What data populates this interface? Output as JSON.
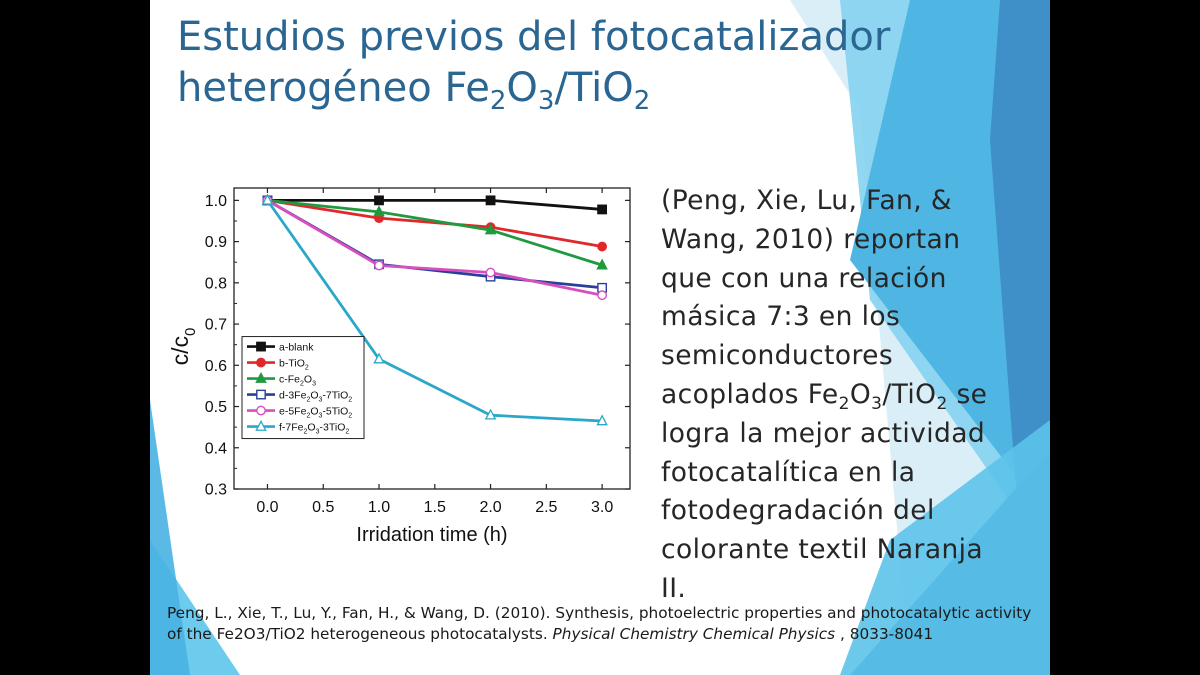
{
  "title": {
    "line1": "Estudios previos del fotocatalizador",
    "line2_pre": "heterogéneo Fe",
    "line2_sub1": "2",
    "line2_mid": "O",
    "line2_sub2": "3",
    "line2_mid2": "/TiO",
    "line2_sub3": "2"
  },
  "body": {
    "l1": "(Peng, Xie, Lu, Fan, &",
    "l2": "Wang, 2010) reportan",
    "l3": "que con una relación",
    "l4": "másica 7:3 en los",
    "l5": "semiconductores",
    "l6_pre": "acoplados Fe",
    "l6_s1": "2",
    "l6_m1": "O",
    "l6_s2": "3",
    "l6_m2": "/TiO",
    "l6_s3": "2",
    "l6_post": " se",
    "l7": "logra la mejor actividad",
    "l8": "fotocatalítica en la",
    "l9": "fotodegradación del",
    "l10": "colorante textil Naranja",
    "l11": "II."
  },
  "citation": {
    "part1": "Peng, L., Xie, T., Lu, Y., Fan, H., & Wang, D. (2010). Synthesis, photoelectric properties and photocatalytic activity of the Fe2O3/TiO2 heterogeneous photocatalysts. ",
    "journal": "Physical Chemistry Chemical Physics",
    "part2": " , 8033-8041"
  },
  "colors": {
    "title": "#2a6691",
    "deco_light": "#5bc4e8",
    "deco_mid": "#3a9fd4",
    "deco_dark": "#2a73a8"
  },
  "chart_data": {
    "type": "line",
    "xlabel": "Irridation time (h)",
    "ylabel_main": "c/c",
    "ylabel_sub": "0",
    "x": [
      0,
      1,
      2,
      3
    ],
    "xlim": [
      -0.3,
      3.25
    ],
    "ylim": [
      0.3,
      1.03
    ],
    "xticks": [
      "0.0",
      "0.5",
      "1.0",
      "1.5",
      "2.0",
      "2.5",
      "3.0"
    ],
    "yticks": [
      "0.3",
      "0.4",
      "0.5",
      "0.6",
      "0.7",
      "0.8",
      "0.9",
      "1.0"
    ],
    "legend_position": "bottom-left",
    "series": [
      {
        "name": "a-blank",
        "prefix": "a-blank",
        "sub1": "",
        "mid": "",
        "sub2": "",
        "tail": "",
        "sub3": "",
        "color": "#111111",
        "marker": "square-filled",
        "values": [
          1.0,
          1.0,
          1.0,
          0.978
        ]
      },
      {
        "name": "b-TiO2",
        "prefix": "b-TiO",
        "sub1": "2",
        "mid": "",
        "sub2": "",
        "tail": "",
        "sub3": "",
        "color": "#e0282b",
        "marker": "circle-filled",
        "values": [
          1.0,
          0.957,
          0.935,
          0.888
        ]
      },
      {
        "name": "c-Fe2O3",
        "prefix": "c-Fe",
        "sub1": "2",
        "mid": "O",
        "sub2": "3",
        "tail": "",
        "sub3": "",
        "color": "#1f9a3e",
        "marker": "triangle-filled",
        "values": [
          1.0,
          0.972,
          0.928,
          0.843
        ]
      },
      {
        "name": "d-3Fe2O3-7TiO2",
        "prefix": "d-3Fe",
        "sub1": "2",
        "mid": "O",
        "sub2": "3",
        "tail": "-7TiO",
        "sub3": "2",
        "color": "#2a3f9a",
        "marker": "square-open",
        "values": [
          1.0,
          0.845,
          0.815,
          0.788
        ]
      },
      {
        "name": "e-5Fe2O3-5TiO2",
        "prefix": "e-5Fe",
        "sub1": "2",
        "mid": "O",
        "sub2": "3",
        "tail": "-5TiO",
        "sub3": "2",
        "color": "#d64fbf",
        "marker": "circle-open",
        "values": [
          1.0,
          0.842,
          0.825,
          0.77
        ]
      },
      {
        "name": "f-7Fe2O3-3TiO2",
        "prefix": "f-7Fe",
        "sub1": "2",
        "mid": "O",
        "sub2": "3",
        "tail": "-3TiO",
        "sub3": "2",
        "color": "#2aa7c9",
        "marker": "triangle-open",
        "values": [
          1.0,
          0.615,
          0.479,
          0.465
        ]
      }
    ]
  }
}
